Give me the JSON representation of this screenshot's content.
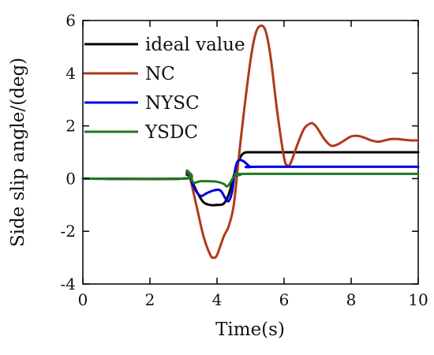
{
  "chart_data": {
    "type": "line",
    "xlabel": "Time(s)",
    "ylabel": "Side slip angle/(deg)",
    "xlim": [
      0,
      10
    ],
    "ylim": [
      -4,
      6
    ],
    "x_ticks": [
      "0",
      "2",
      "4",
      "6",
      "8",
      "10"
    ],
    "y_ticks": [
      "-4",
      "-2",
      "0",
      "2",
      "4",
      "6"
    ],
    "grid": false,
    "legend_position": "top-left",
    "series": [
      {
        "name": "ideal value",
        "color": "#000000",
        "x": [
          0,
          3.0,
          3.1,
          3.2,
          3.4,
          3.6,
          3.8,
          4.0,
          4.2,
          4.35,
          4.5,
          4.65,
          4.8,
          5.0,
          5.5,
          10
        ],
        "y": [
          0,
          0,
          0.15,
          0.05,
          -0.5,
          -0.9,
          -1.0,
          -1.0,
          -0.95,
          -0.6,
          0.1,
          0.7,
          0.97,
          1.0,
          1.0,
          1.0
        ]
      },
      {
        "name": "NC",
        "color": "#b03a1a",
        "x": [
          0,
          3.0,
          3.1,
          3.2,
          3.4,
          3.6,
          3.8,
          3.9,
          4.0,
          4.2,
          4.35,
          4.5,
          4.65,
          4.8,
          5.0,
          5.15,
          5.3,
          5.45,
          5.6,
          5.8,
          6.0,
          6.1,
          6.2,
          6.4,
          6.6,
          6.8,
          6.9,
          7.0,
          7.2,
          7.4,
          7.6,
          7.8,
          8.0,
          8.2,
          8.4,
          8.6,
          8.8,
          9.0,
          9.2,
          9.4,
          9.6,
          9.8,
          10
        ],
        "y": [
          0,
          0,
          0.2,
          0.0,
          -1.1,
          -2.2,
          -2.9,
          -3.0,
          -2.9,
          -2.2,
          -1.8,
          -1.0,
          0.8,
          2.5,
          4.5,
          5.5,
          5.8,
          5.6,
          4.6,
          2.5,
          0.8,
          0.5,
          0.6,
          1.3,
          1.9,
          2.1,
          2.05,
          1.9,
          1.5,
          1.25,
          1.3,
          1.45,
          1.6,
          1.62,
          1.55,
          1.45,
          1.4,
          1.45,
          1.5,
          1.5,
          1.47,
          1.45,
          1.45
        ]
      },
      {
        "name": "NYSC",
        "color": "#0000dd",
        "x": [
          0,
          3.0,
          3.1,
          3.2,
          3.3,
          3.5,
          3.7,
          3.9,
          4.1,
          4.25,
          4.35,
          4.45,
          4.55,
          4.65,
          4.8,
          5.0,
          5.3,
          10
        ],
        "y": [
          0,
          0,
          0.25,
          0.1,
          -0.3,
          -0.65,
          -0.55,
          -0.45,
          -0.45,
          -0.75,
          -0.85,
          -0.5,
          0.4,
          0.7,
          0.65,
          0.45,
          0.45,
          0.45
        ]
      },
      {
        "name": "YSDC",
        "color": "#1e7a1e",
        "x": [
          0,
          3.0,
          3.1,
          3.2,
          3.3,
          3.5,
          3.8,
          4.0,
          4.2,
          4.3,
          4.4,
          4.5,
          4.7,
          5.0,
          10
        ],
        "y": [
          0,
          0,
          0.3,
          0.15,
          -0.15,
          -0.1,
          -0.1,
          -0.12,
          -0.2,
          -0.3,
          -0.15,
          0.05,
          0.15,
          0.18,
          0.18
        ]
      }
    ]
  }
}
